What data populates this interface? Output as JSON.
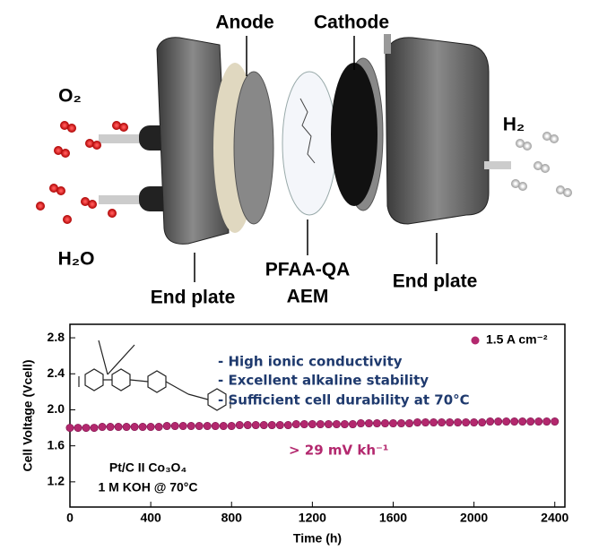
{
  "illustration": {
    "labels": {
      "anode": "Anode",
      "cathode": "Cathode",
      "o2": "O₂",
      "h2o": "H₂O",
      "h2": "H₂",
      "end_plate_left": "End plate",
      "membrane_line1": "PFAA-QA",
      "membrane_line2": "AEM",
      "end_plate_right": "End plate"
    }
  },
  "chart_data": {
    "type": "scatter",
    "xlabel": "Time (h)",
    "ylabel": "Cell Voltage (Vcell)",
    "xlim": [
      0,
      2450
    ],
    "xticks": [
      0,
      400,
      800,
      1200,
      1600,
      2000,
      2400
    ],
    "ylim": [
      0.92,
      2.95
    ],
    "yticks": [
      1.2,
      1.6,
      {
        "value": 2,
        "label": "2.0"
      },
      2.4,
      2.8
    ],
    "legend": "top-right",
    "series": [
      {
        "name": "1.5 A cm⁻²",
        "color": "#b3286e",
        "x": [
          0,
          40,
          80,
          120,
          160,
          200,
          240,
          280,
          320,
          360,
          400,
          440,
          480,
          520,
          560,
          600,
          640,
          680,
          720,
          760,
          800,
          840,
          880,
          920,
          960,
          1000,
          1040,
          1080,
          1120,
          1160,
          1200,
          1240,
          1280,
          1320,
          1360,
          1400,
          1440,
          1480,
          1520,
          1560,
          1600,
          1640,
          1680,
          1720,
          1760,
          1800,
          1840,
          1880,
          1920,
          1960,
          2000,
          2040,
          2080,
          2120,
          2160,
          2200,
          2240,
          2280,
          2320,
          2360,
          2400
        ],
        "values": [
          1.8,
          1.8,
          1.8,
          1.8,
          1.81,
          1.81,
          1.81,
          1.81,
          1.81,
          1.81,
          1.81,
          1.81,
          1.82,
          1.82,
          1.82,
          1.82,
          1.82,
          1.82,
          1.82,
          1.82,
          1.82,
          1.83,
          1.83,
          1.83,
          1.83,
          1.83,
          1.83,
          1.83,
          1.84,
          1.84,
          1.84,
          1.84,
          1.84,
          1.84,
          1.84,
          1.84,
          1.85,
          1.85,
          1.85,
          1.85,
          1.85,
          1.85,
          1.85,
          1.86,
          1.86,
          1.86,
          1.86,
          1.86,
          1.86,
          1.86,
          1.86,
          1.86,
          1.87,
          1.87,
          1.87,
          1.87,
          1.87,
          1.87,
          1.87,
          1.87,
          1.87
        ]
      }
    ],
    "annotations": [
      "- High ionic conductivity",
      "- Excellent alkaline stability",
      "- Sufficient cell durability at 70°C",
      "> 29 mV kh⁻¹",
      "Pt/C II Co₃O₄",
      "1 M KOH @ 70°C"
    ]
  }
}
